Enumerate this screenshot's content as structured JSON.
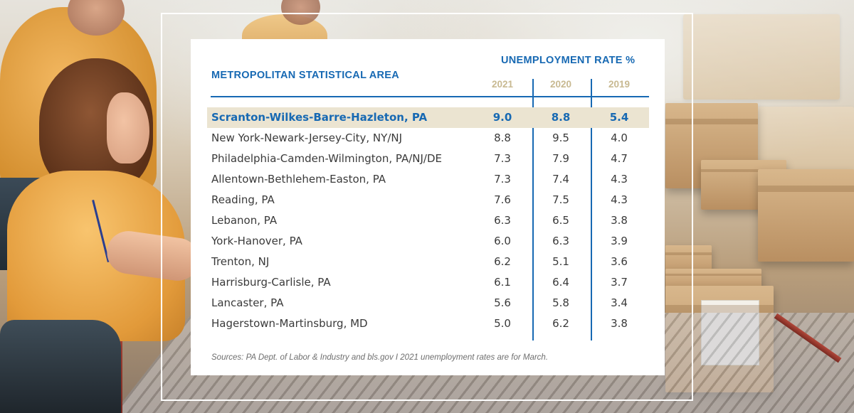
{
  "table": {
    "area_header": "METROPOLITAN STATISTICAL AREA",
    "rate_header": "UNEMPLOYMENT RATE %",
    "years": [
      "2021",
      "2020",
      "2019"
    ],
    "rows": [
      {
        "area": "Scranton-Wilkes-Barre-Hazleton, PA",
        "y2021": "9.0",
        "y2020": "8.8",
        "y2019": "5.4"
      },
      {
        "area": "New York-Newark-Jersey-City, NY/NJ",
        "y2021": "8.8",
        "y2020": "9.5",
        "y2019": "4.0"
      },
      {
        "area": "Philadelphia-Camden-Wilmington, PA/NJ/DE",
        "y2021": "7.3",
        "y2020": "7.9",
        "y2019": "4.7"
      },
      {
        "area": "Allentown-Bethlehem-Easton, PA",
        "y2021": "7.3",
        "y2020": "7.4",
        "y2019": "4.3"
      },
      {
        "area": "Reading, PA",
        "y2021": "7.6",
        "y2020": "7.5",
        "y2019": "4.3"
      },
      {
        "area": "Lebanon, PA",
        "y2021": "6.3",
        "y2020": "6.5",
        "y2019": "3.8"
      },
      {
        "area": "York-Hanover, PA",
        "y2021": "6.0",
        "y2020": "6.3",
        "y2019": "3.9"
      },
      {
        "area": "Trenton, NJ",
        "y2021": "6.2",
        "y2020": "5.1",
        "y2019": "3.6"
      },
      {
        "area": "Harrisburg-Carlisle, PA",
        "y2021": "6.1",
        "y2020": "6.4",
        "y2019": "3.7"
      },
      {
        "area": "Lancaster, PA",
        "y2021": "5.6",
        "y2020": "5.8",
        "y2019": "3.4"
      },
      {
        "area": "Hagerstown-Martinsburg, MD",
        "y2021": "5.0",
        "y2020": "6.2",
        "y2019": "3.8"
      }
    ],
    "source_note": "Sources: PA Dept. of Labor & Industry and bls.gov  I  2021 unemployment rates are for March."
  },
  "colors": {
    "accent_blue": "#1769b3",
    "year_gold": "#c8b991",
    "highlight_row": "#ebe4d1"
  }
}
